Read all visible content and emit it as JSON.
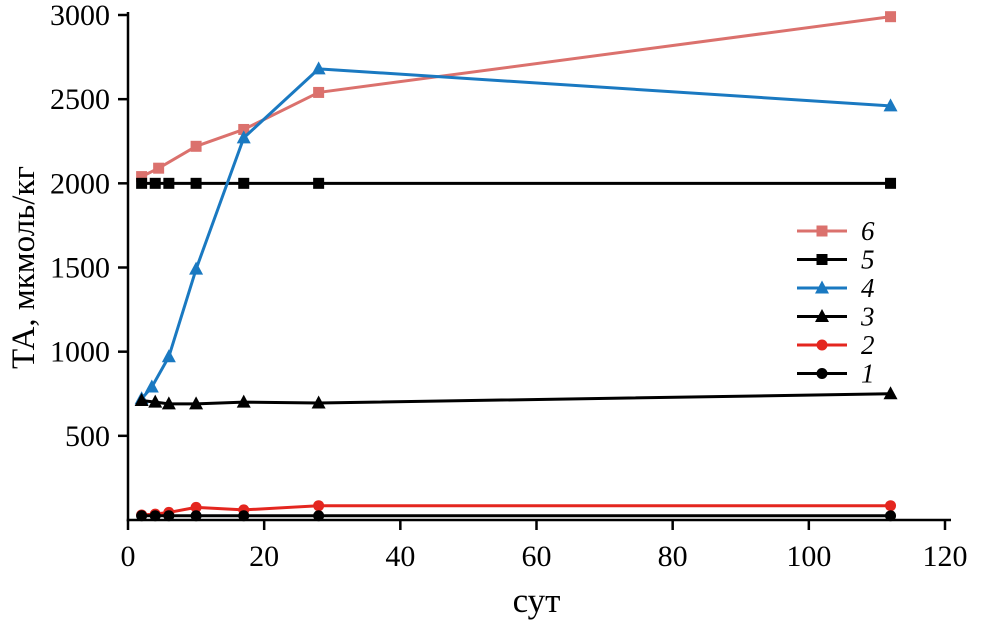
{
  "chart_data": {
    "type": "line",
    "title": "",
    "xlabel": "сут",
    "ylabel": "ТА, мкмоль/кг",
    "xlim": [
      0,
      120
    ],
    "ylim": [
      0,
      3000
    ],
    "x_ticks": [
      0,
      20,
      40,
      60,
      80,
      100,
      120
    ],
    "y_ticks": [
      500,
      1000,
      1500,
      2000,
      2500,
      3000
    ],
    "grid": false,
    "legend_position": "right-middle",
    "axis_color": "#000000",
    "series": [
      {
        "name": "6",
        "color": "#db716d",
        "marker": "square",
        "x": [
          2,
          4.5,
          10,
          17,
          28,
          112
        ],
        "y": [
          2040,
          2090,
          2220,
          2320,
          2540,
          2990
        ]
      },
      {
        "name": "5",
        "color": "#000000",
        "marker": "square",
        "x": [
          2,
          4,
          6,
          10,
          17,
          28,
          112
        ],
        "y": [
          2000,
          2000,
          2000,
          2000,
          2000,
          2000,
          2000
        ]
      },
      {
        "name": "4",
        "color": "#1a79c1",
        "marker": "triangle",
        "x": [
          2,
          3.5,
          6,
          10,
          17,
          28,
          112
        ],
        "y": [
          720,
          790,
          970,
          1490,
          2270,
          2680,
          2460
        ]
      },
      {
        "name": "3",
        "color": "#000000",
        "marker": "triangle",
        "x": [
          2,
          4,
          6,
          10,
          17,
          28,
          112
        ],
        "y": [
          710,
          700,
          690,
          690,
          700,
          695,
          750
        ]
      },
      {
        "name": "2",
        "color": "#e4261f",
        "marker": "circle",
        "x": [
          2,
          4,
          6,
          10,
          17,
          28,
          112
        ],
        "y": [
          30,
          35,
          45,
          75,
          60,
          85,
          85
        ]
      },
      {
        "name": "1",
        "color": "#000000",
        "marker": "circle",
        "x": [
          2,
          4,
          6,
          10,
          17,
          28,
          112
        ],
        "y": [
          25,
          25,
          25,
          25,
          25,
          25,
          25
        ]
      }
    ]
  }
}
